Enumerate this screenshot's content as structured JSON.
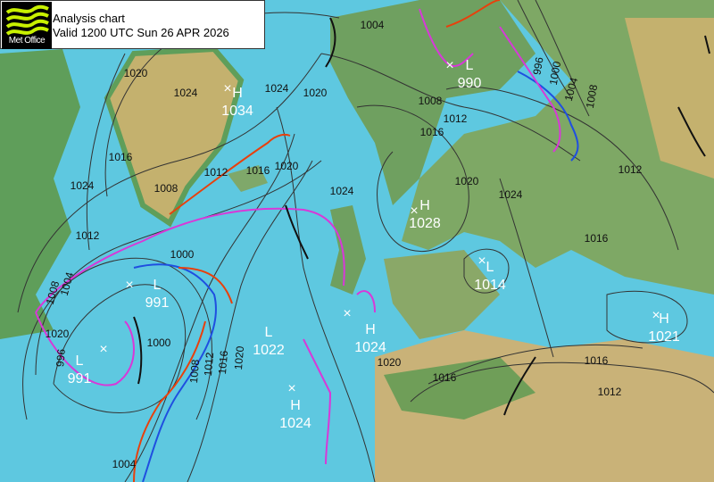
{
  "header": {
    "logo_text": "Met Office",
    "title": "Analysis chart",
    "valid": "Valid 1200 UTC Sun 26 APR 2026"
  },
  "colors": {
    "sea": "#5ec8e0",
    "land_low": "#5f9e5a",
    "land_high": "#c4b16e",
    "warm_front": "#e8400c",
    "cold_front": "#1f4fe0",
    "occluded_front": "#d838d8",
    "isobar": "#333333"
  },
  "pressure_centres": [
    {
      "type": "H",
      "value": "1034"
    },
    {
      "type": "L",
      "value": "990"
    },
    {
      "type": "H",
      "value": "1028"
    },
    {
      "type": "L",
      "value": "1014"
    },
    {
      "type": "H",
      "value": "1021"
    },
    {
      "type": "L",
      "value": "991"
    },
    {
      "type": "L",
      "value": "991"
    },
    {
      "type": "L",
      "value": "1022"
    },
    {
      "type": "H",
      "value": "1024"
    },
    {
      "type": "H",
      "value": "1024"
    }
  ],
  "isobar_labels": [
    "1004",
    "1020",
    "1024",
    "1024",
    "1020",
    "1016",
    "1012",
    "1008",
    "1016",
    "1020",
    "1024",
    "1008",
    "1012",
    "1016",
    "1024",
    "1020",
    "996",
    "1000",
    "1004",
    "1008",
    "1012",
    "1016",
    "1024",
    "1020",
    "1012",
    "1008",
    "1004",
    "1000",
    "996",
    "1000",
    "1008",
    "1012",
    "1016",
    "1020",
    "1020",
    "1016",
    "1016",
    "1012",
    "1004"
  ]
}
